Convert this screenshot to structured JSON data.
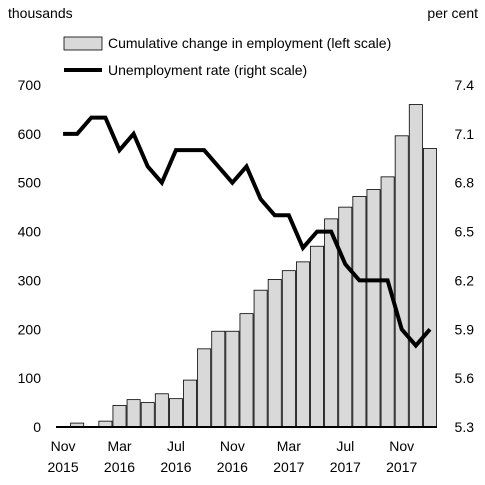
{
  "chart_data": {
    "type": "bar",
    "title": "",
    "left_unit": "thousands",
    "right_unit": "per cent",
    "legend": [
      {
        "label": "Cumulative change in employment (left scale)",
        "kind": "bar"
      },
      {
        "label": "Unemployment rate (right scale)",
        "kind": "line"
      }
    ],
    "categories": [
      "Nov 2015",
      "Dec 2015",
      "Jan 2016",
      "Feb 2016",
      "Mar 2016",
      "Apr 2016",
      "May 2016",
      "Jun 2016",
      "Jul 2016",
      "Aug 2016",
      "Sep 2016",
      "Oct 2016",
      "Nov 2016",
      "Dec 2016",
      "Jan 2017",
      "Feb 2017",
      "Mar 2017",
      "Apr 2017",
      "May 2017",
      "Jun 2017",
      "Jul 2017",
      "Aug 2017",
      "Sep 2017",
      "Oct 2017",
      "Nov 2017",
      "Dec 2017",
      "Jan 2018"
    ],
    "x_tick_labels": [
      {
        "index": 0,
        "line1": "Nov",
        "line2": "2015"
      },
      {
        "index": 4,
        "line1": "Mar",
        "line2": "2016"
      },
      {
        "index": 8,
        "line1": "Jul",
        "line2": "2016"
      },
      {
        "index": 12,
        "line1": "Nov",
        "line2": "2016"
      },
      {
        "index": 16,
        "line1": "Mar",
        "line2": "2017"
      },
      {
        "index": 20,
        "line1": "Jul",
        "line2": "2017"
      },
      {
        "index": 24,
        "line1": "Nov",
        "line2": "2017"
      }
    ],
    "series": [
      {
        "name": "Cumulative change in employment (left scale)",
        "type": "bar",
        "axis": "left",
        "values": [
          0,
          8,
          0,
          12,
          44,
          56,
          50,
          68,
          58,
          96,
          160,
          196,
          196,
          232,
          280,
          302,
          320,
          338,
          370,
          426,
          450,
          472,
          486,
          512,
          596,
          660,
          570
        ]
      },
      {
        "name": "Unemployment rate (right scale)",
        "type": "line",
        "axis": "right",
        "values": [
          7.1,
          7.1,
          7.2,
          7.2,
          7.0,
          7.1,
          6.9,
          6.8,
          7.0,
          7.0,
          7.0,
          6.9,
          6.8,
          6.9,
          6.7,
          6.6,
          6.6,
          6.4,
          6.5,
          6.5,
          6.3,
          6.2,
          6.2,
          6.2,
          5.9,
          5.8,
          5.9
        ]
      }
    ],
    "left_axis": {
      "ylim": [
        0,
        700
      ],
      "ticks": [
        0,
        100,
        200,
        300,
        400,
        500,
        600,
        700
      ]
    },
    "right_axis": {
      "ylim": [
        5.3,
        7.4
      ],
      "ticks": [
        "5.3",
        "5.6",
        "5.9",
        "6.2",
        "6.5",
        "6.8",
        "7.1",
        "7.4"
      ]
    },
    "colors": {
      "bar_fill": "#d9d9d9",
      "bar_stroke": "#000000",
      "line": "#000000"
    },
    "grid": false,
    "legend_position": "top"
  }
}
